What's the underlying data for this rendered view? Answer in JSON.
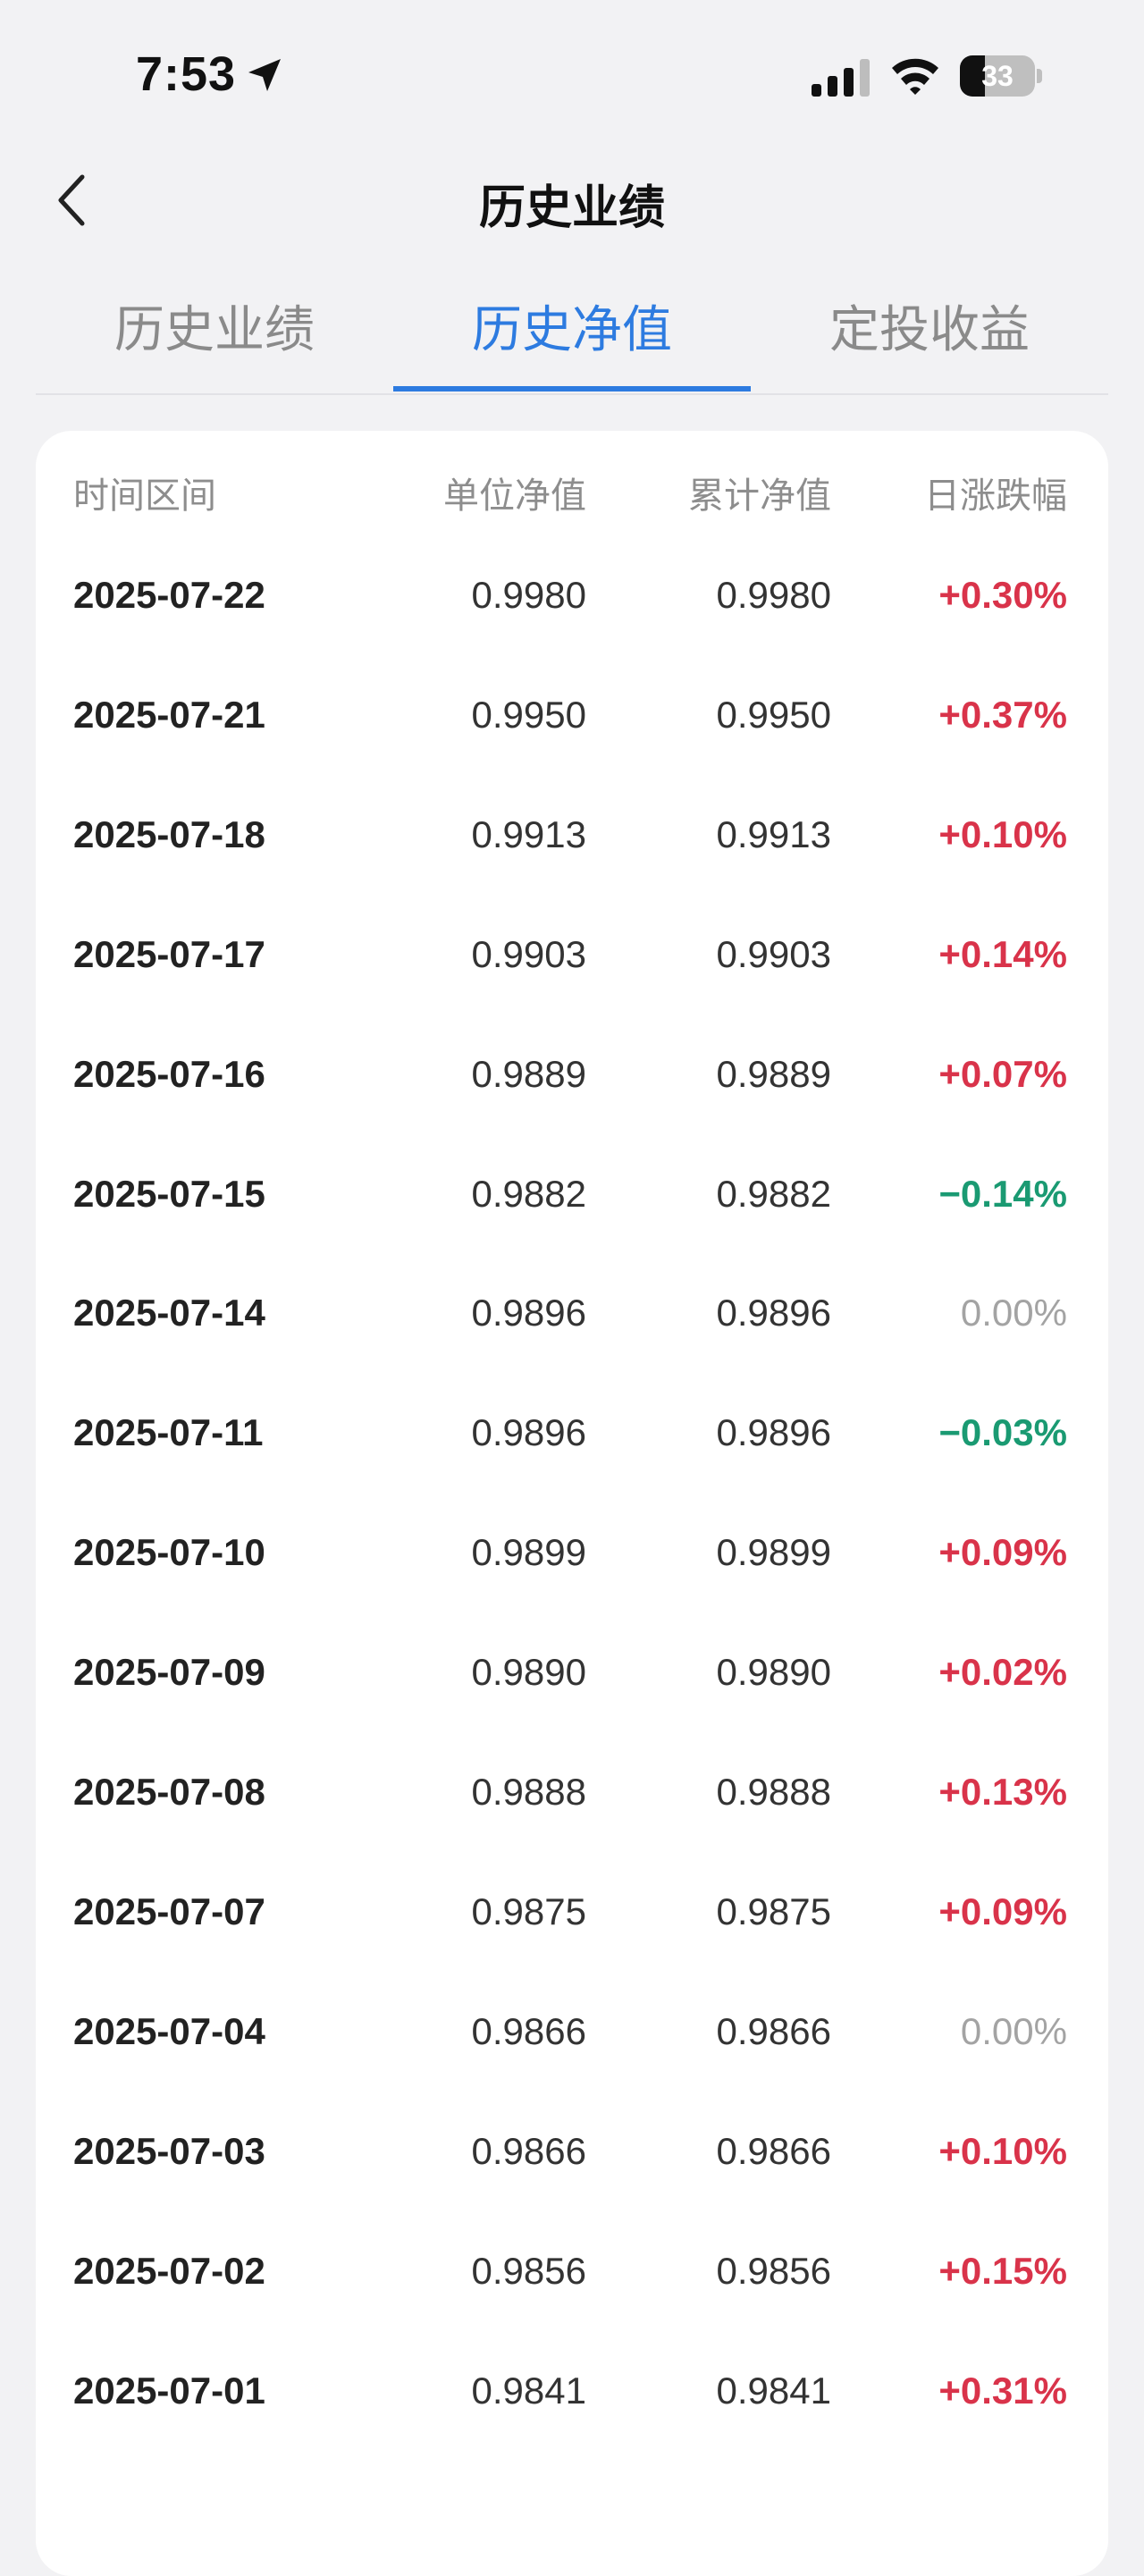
{
  "status_bar": {
    "time": "7:53",
    "battery": "33",
    "battery_level": 0.33
  },
  "nav": {
    "title": "历史业绩"
  },
  "tabs": [
    {
      "label": "历史业绩",
      "active": false
    },
    {
      "label": "历史净值",
      "active": true
    },
    {
      "label": "定投收益",
      "active": false
    }
  ],
  "table": {
    "headers": {
      "date": "时间区间",
      "unit": "单位净值",
      "cumulative": "累计净值",
      "change": "日涨跌幅"
    },
    "rows": [
      {
        "date": "2025-07-22",
        "unit": "0.9980",
        "cumulative": "0.9980",
        "change": "+0.30%",
        "trend": "up"
      },
      {
        "date": "2025-07-21",
        "unit": "0.9950",
        "cumulative": "0.9950",
        "change": "+0.37%",
        "trend": "up"
      },
      {
        "date": "2025-07-18",
        "unit": "0.9913",
        "cumulative": "0.9913",
        "change": "+0.10%",
        "trend": "up"
      },
      {
        "date": "2025-07-17",
        "unit": "0.9903",
        "cumulative": "0.9903",
        "change": "+0.14%",
        "trend": "up"
      },
      {
        "date": "2025-07-16",
        "unit": "0.9889",
        "cumulative": "0.9889",
        "change": "+0.07%",
        "trend": "up"
      },
      {
        "date": "2025-07-15",
        "unit": "0.9882",
        "cumulative": "0.9882",
        "change": "−0.14%",
        "trend": "down"
      },
      {
        "date": "2025-07-14",
        "unit": "0.9896",
        "cumulative": "0.9896",
        "change": "0.00%",
        "trend": "flat"
      },
      {
        "date": "2025-07-11",
        "unit": "0.9896",
        "cumulative": "0.9896",
        "change": "−0.03%",
        "trend": "down"
      },
      {
        "date": "2025-07-10",
        "unit": "0.9899",
        "cumulative": "0.9899",
        "change": "+0.09%",
        "trend": "up"
      },
      {
        "date": "2025-07-09",
        "unit": "0.9890",
        "cumulative": "0.9890",
        "change": "+0.02%",
        "trend": "up"
      },
      {
        "date": "2025-07-08",
        "unit": "0.9888",
        "cumulative": "0.9888",
        "change": "+0.13%",
        "trend": "up"
      },
      {
        "date": "2025-07-07",
        "unit": "0.9875",
        "cumulative": "0.9875",
        "change": "+0.09%",
        "trend": "up"
      },
      {
        "date": "2025-07-04",
        "unit": "0.9866",
        "cumulative": "0.9866",
        "change": "0.00%",
        "trend": "flat"
      },
      {
        "date": "2025-07-03",
        "unit": "0.9866",
        "cumulative": "0.9866",
        "change": "+0.10%",
        "trend": "up"
      },
      {
        "date": "2025-07-02",
        "unit": "0.9856",
        "cumulative": "0.9856",
        "change": "+0.15%",
        "trend": "up"
      },
      {
        "date": "2025-07-01",
        "unit": "0.9841",
        "cumulative": "0.9841",
        "change": "+0.31%",
        "trend": "up"
      }
    ]
  },
  "colors": {
    "accent": "#2d7be0",
    "up": "#d9334a",
    "down": "#1a9a72",
    "flat": "#a3a3a3"
  },
  "icons": [
    "location-arrow-icon",
    "cellular-signal-icon",
    "wifi-icon",
    "battery-icon",
    "back-chevron-icon"
  ]
}
